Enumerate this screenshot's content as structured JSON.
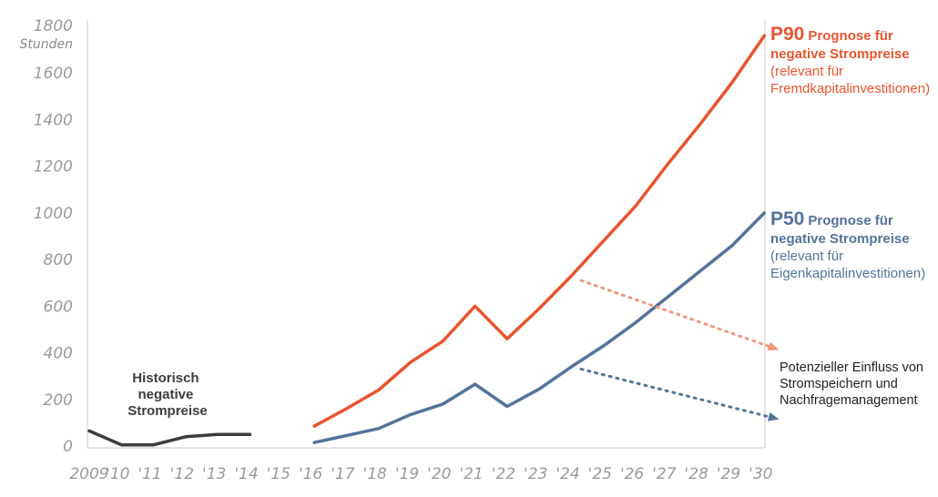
{
  "chart_data": {
    "type": "line",
    "ylabel": "Stunden",
    "ylim": [
      0,
      1800
    ],
    "yticks": [
      "0",
      "200",
      "400",
      "600",
      "800",
      "1000",
      "1200",
      "1400",
      "1600",
      "1800"
    ],
    "x_tick_labels": [
      "2009",
      "'10",
      "'11",
      "'12",
      "'13",
      "'14",
      "'15",
      "'16",
      "'17",
      "'18",
      "'19",
      "'20",
      "'21",
      "'22",
      "'23",
      "'24",
      "'25",
      "'26",
      "'27",
      "'28",
      "'29",
      "'30"
    ],
    "x_years": [
      2009,
      2010,
      2011,
      2012,
      2013,
      2014,
      2015,
      2016,
      2017,
      2018,
      2019,
      2020,
      2021,
      2022,
      2023,
      2024,
      2025,
      2026,
      2027,
      2028,
      2029,
      2030
    ],
    "series": [
      {
        "key": "historical",
        "color": "#3d3d3d",
        "label_lines": [
          "Historisch",
          "negative",
          "Strompreise"
        ],
        "x": [
          2009,
          2010,
          2011,
          2012,
          2013,
          2014
        ],
        "values": [
          65,
          5,
          5,
          40,
          50,
          50
        ]
      },
      {
        "key": "p90",
        "color": "#e8552f",
        "label_big": "P90",
        "label_bold": "Prognose für",
        "label_bold2": "negative Strompreise",
        "label_plain": [
          "(relevant für",
          "Fremdkapitalinvestitionen)"
        ],
        "x": [
          2016,
          2017,
          2018,
          2019,
          2020,
          2021,
          2022,
          2023,
          2024,
          2025,
          2026,
          2027,
          2028,
          2029,
          2030
        ],
        "values": [
          85,
          160,
          240,
          360,
          450,
          600,
          460,
          590,
          730,
          880,
          1030,
          1210,
          1380,
          1560,
          1760
        ]
      },
      {
        "key": "p50",
        "color": "#54739a",
        "label_big": "P50",
        "label_bold": "Prognose für",
        "label_bold2": "negative Strompreise",
        "label_plain": [
          "(relevant für",
          "Eigenkapitalinvestitionen)"
        ],
        "x": [
          2016,
          2017,
          2018,
          2019,
          2020,
          2021,
          2022,
          2023,
          2024,
          2025,
          2026,
          2027,
          2028,
          2029,
          2030
        ],
        "values": [
          15,
          45,
          75,
          135,
          180,
          265,
          170,
          245,
          340,
          430,
          530,
          640,
          750,
          860,
          1000
        ]
      }
    ],
    "annotations": {
      "storage_note": [
        "Potenzieller Einfluss von",
        "Stromspeichern und",
        "Nachfragemanagement"
      ],
      "p90_arrow": {
        "from": [
          2024.3,
          710
        ],
        "to": [
          2030.3,
          420
        ],
        "color": "#f2967a"
      },
      "p50_arrow": {
        "from": [
          2024.3,
          330
        ],
        "to": [
          2030.3,
          120
        ],
        "color": "#54739a"
      }
    }
  }
}
